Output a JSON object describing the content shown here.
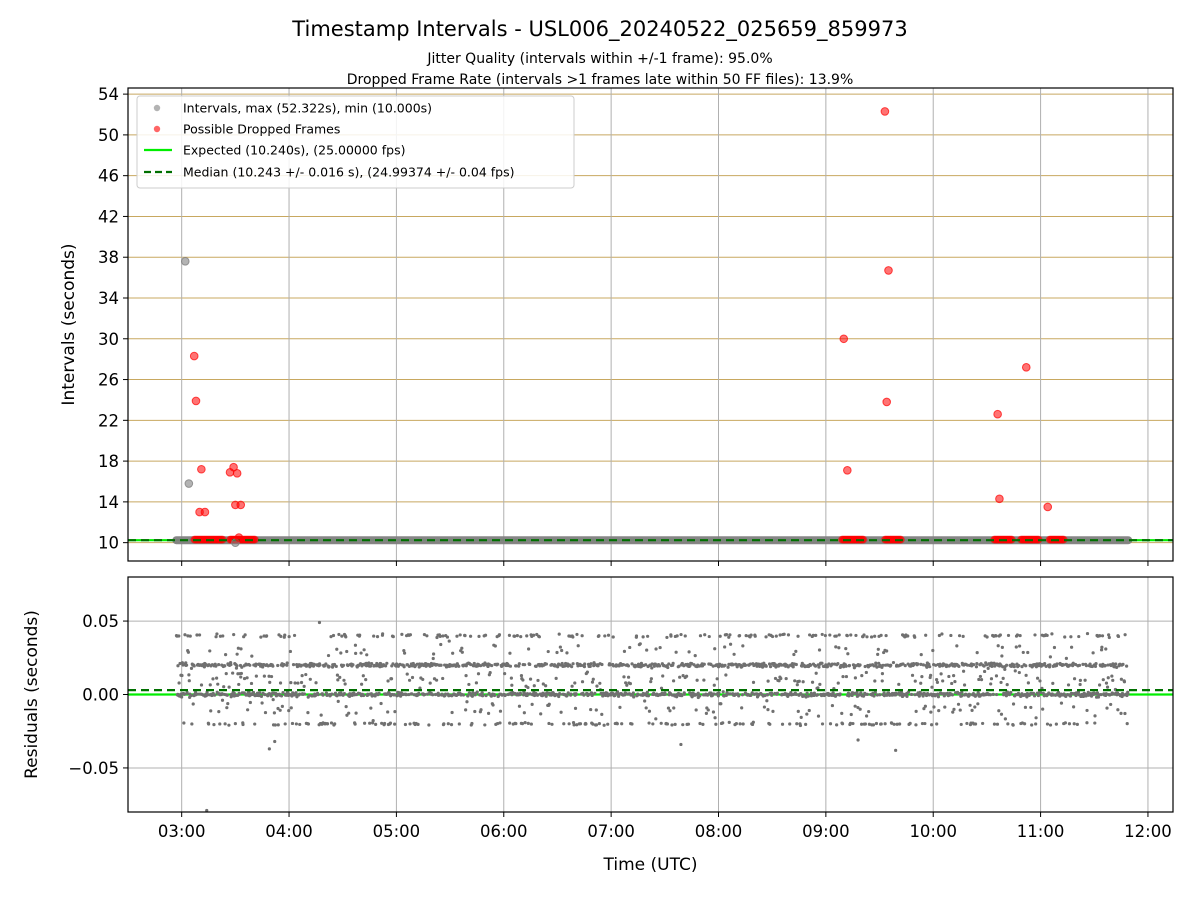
{
  "title": "Timestamp Intervals - USL006_20240522_025659_859973",
  "subtitle_1": "Jitter Quality (intervals within +/-1 frame): 95.0%",
  "subtitle_2": "Dropped Frame Rate (intervals >1 frames late within 50 FF files): 13.9%",
  "colors": {
    "intervals": "#808080",
    "dropped": "#ff0000",
    "expected": "#00ee00",
    "median": "#007000",
    "top_grid": "#c8a860",
    "grid": "#b0b0b0",
    "residuals": "#707070"
  },
  "chart_data": [
    {
      "type": "scatter",
      "ylabel": "Intervals (seconds)",
      "xlim": [
        "02:30",
        "12:14"
      ],
      "ylim": [
        8.2,
        54.6
      ],
      "yticks": [
        10,
        14,
        18,
        22,
        26,
        30,
        34,
        38,
        42,
        46,
        50,
        54
      ],
      "grid": true,
      "legend_position": "top-left",
      "series": [
        {
          "name": "Intervals, max (52.322s), min (10.000s)",
          "role": "intervals",
          "band": {
            "x_start": "02:57",
            "x_end": "11:49",
            "y": 10.24
          },
          "points": [
            {
              "x": "03:02",
              "y": 37.6
            },
            {
              "x": "03:04",
              "y": 15.8
            },
            {
              "x": "03:30",
              "y": 10.0
            }
          ]
        },
        {
          "name": "Possible Dropped Frames",
          "role": "dropped",
          "bands": [
            {
              "x_start": "03:07",
              "x_end": "03:23",
              "y": 10.3
            },
            {
              "x_start": "03:27",
              "x_end": "03:41",
              "y": 10.3
            },
            {
              "x_start": "09:09",
              "x_end": "09:21",
              "y": 10.3
            },
            {
              "x_start": "09:33",
              "x_end": "09:42",
              "y": 10.3
            },
            {
              "x_start": "10:34",
              "x_end": "10:44",
              "y": 10.3
            },
            {
              "x_start": "10:49",
              "x_end": "10:59",
              "y": 10.3
            },
            {
              "x_start": "11:05",
              "x_end": "11:13",
              "y": 10.3
            }
          ],
          "points": [
            {
              "x": "03:07",
              "y": 28.3
            },
            {
              "x": "03:08",
              "y": 23.9
            },
            {
              "x": "03:10",
              "y": 13.0
            },
            {
              "x": "03:11",
              "y": 17.2
            },
            {
              "x": "03:13",
              "y": 13.0
            },
            {
              "x": "03:27",
              "y": 16.9
            },
            {
              "x": "03:29",
              "y": 17.4
            },
            {
              "x": "03:30",
              "y": 13.7
            },
            {
              "x": "03:31",
              "y": 16.8
            },
            {
              "x": "03:32",
              "y": 10.5
            },
            {
              "x": "03:33",
              "y": 13.7
            },
            {
              "x": "09:10",
              "y": 30.0
            },
            {
              "x": "09:12",
              "y": 17.1
            },
            {
              "x": "09:33",
              "y": 52.3
            },
            {
              "x": "09:34",
              "y": 23.8
            },
            {
              "x": "09:35",
              "y": 36.7
            },
            {
              "x": "10:36",
              "y": 22.6
            },
            {
              "x": "10:37",
              "y": 14.3
            },
            {
              "x": "10:52",
              "y": 27.2
            },
            {
              "x": "11:04",
              "y": 13.5
            }
          ]
        },
        {
          "name": "Expected (10.240s), (25.00000 fps)",
          "role": "expected",
          "type": "line",
          "y": 10.24
        },
        {
          "name": "Median (10.243 +/- 0.016 s), (24.99374 +/- 0.04 fps)",
          "role": "median",
          "type": "dashed-line",
          "y": 10.243
        }
      ]
    },
    {
      "type": "scatter",
      "xlabel": "Time (UTC)",
      "ylabel": "Residuals (seconds)",
      "xlim": [
        "02:30",
        "12:14"
      ],
      "ylim": [
        -0.08,
        0.08
      ],
      "yticks": [
        0.05,
        0.0,
        -0.05
      ],
      "ytick_labels": [
        "0.05",
        "0.00",
        "−0.05"
      ],
      "xticks": [
        "03:00",
        "04:00",
        "05:00",
        "06:00",
        "07:00",
        "08:00",
        "09:00",
        "10:00",
        "11:00",
        "12:00"
      ],
      "grid": true,
      "reference_lines": [
        {
          "role": "expected",
          "y": 0.0
        },
        {
          "role": "median",
          "y": 0.003
        }
      ],
      "residual_clusters": [
        {
          "y": 0.02,
          "share": 0.34,
          "spread": 0.0015
        },
        {
          "y": 0.0,
          "share": 0.34,
          "spread": 0.0015
        },
        {
          "y": -0.02,
          "share": 0.08,
          "spread": 0.001
        },
        {
          "y": 0.04,
          "share": 0.08,
          "spread": 0.0012
        },
        {
          "y": 0.01,
          "share": 0.08,
          "spread": 0.007
        },
        {
          "y": -0.01,
          "share": 0.05,
          "spread": 0.006
        },
        {
          "y": 0.03,
          "share": 0.03,
          "spread": 0.005
        }
      ],
      "residual_count": 2400,
      "x_start": "02:57",
      "x_end": "11:49",
      "extra_points": [
        {
          "x": "03:14",
          "y": -0.079
        },
        {
          "x": "03:49",
          "y": -0.037
        },
        {
          "x": "03:52",
          "y": -0.032
        },
        {
          "x": "09:39",
          "y": -0.038
        },
        {
          "x": "04:17",
          "y": 0.049
        },
        {
          "x": "07:39",
          "y": -0.034
        },
        {
          "x": "09:18",
          "y": -0.031
        }
      ]
    }
  ]
}
